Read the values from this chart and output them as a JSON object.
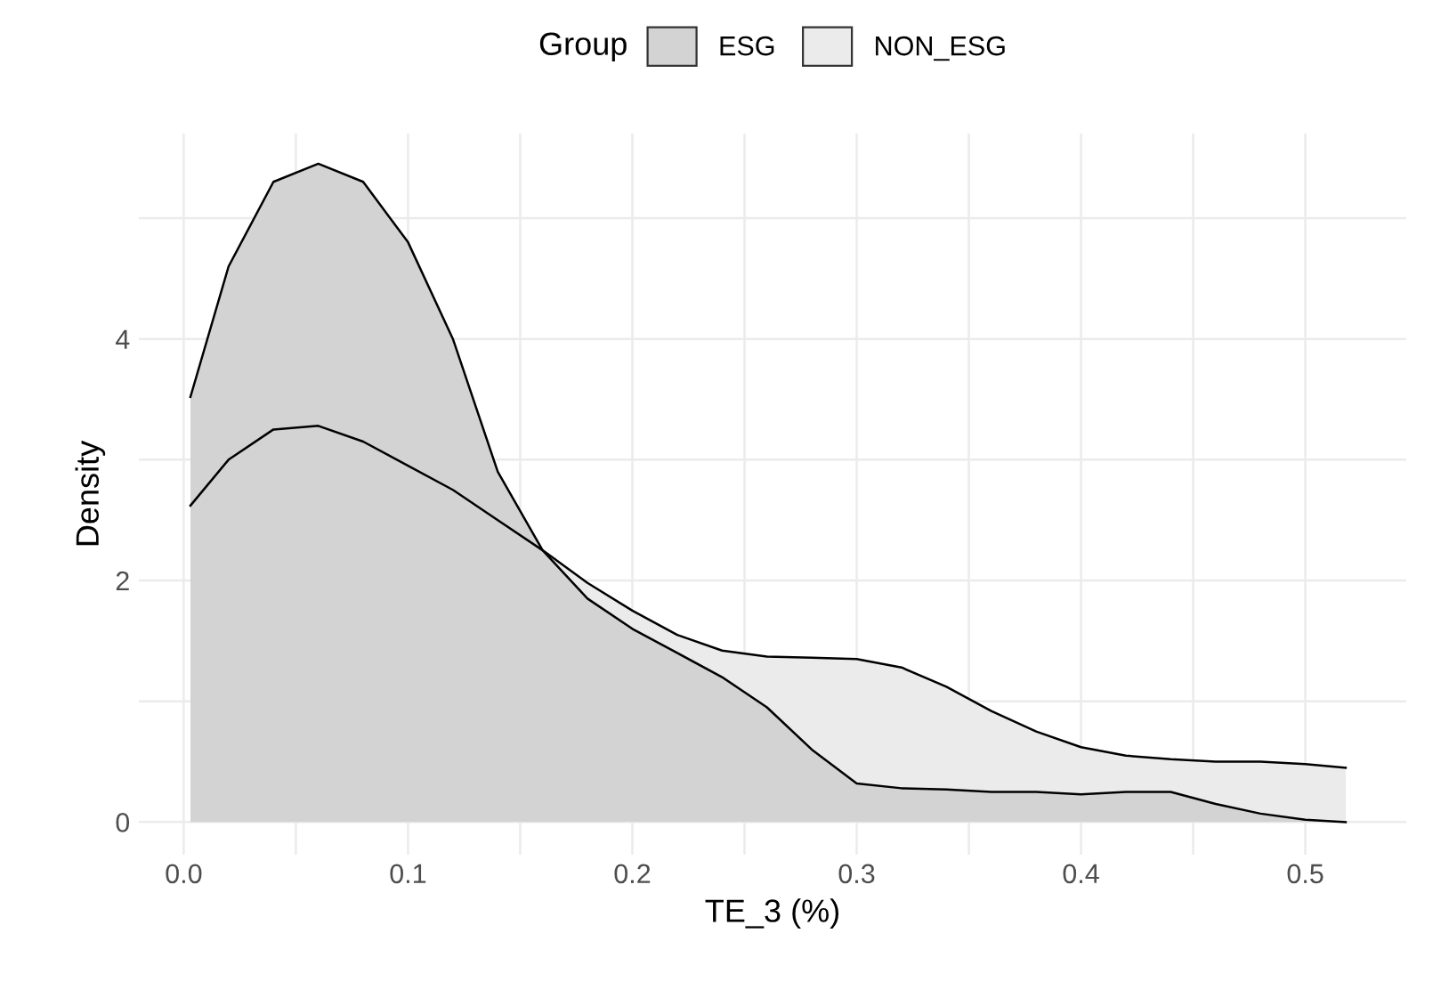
{
  "chart_data": {
    "type": "area",
    "xlabel": "TE_3 (%)",
    "ylabel": "Density",
    "legend_title": "Group",
    "legend": "top",
    "grid": true,
    "xlim": [
      -0.02,
      0.545
    ],
    "ylim": [
      -0.27,
      5.7
    ],
    "xticks": [
      {
        "value": 0,
        "label": "0.0"
      },
      {
        "value": 0.05,
        "label": null
      },
      0.1,
      {
        "value": 0.15,
        "label": null
      },
      0.2,
      {
        "value": 0.25,
        "label": null
      },
      0.3,
      {
        "value": 0.35,
        "label": null
      },
      0.4,
      {
        "value": 0.45,
        "label": null
      },
      0.5
    ],
    "yticks": [
      0,
      {
        "value": 1,
        "label": null
      },
      2,
      {
        "value": 3,
        "label": null
      },
      4,
      {
        "value": 5,
        "label": null
      }
    ],
    "series": [
      {
        "name": "NON_ESG",
        "color": "#ebebeb",
        "x": [
          0.003,
          0.02,
          0.04,
          0.06,
          0.08,
          0.1,
          0.12,
          0.14,
          0.16,
          0.18,
          0.2,
          0.22,
          0.24,
          0.26,
          0.28,
          0.3,
          0.32,
          0.34,
          0.36,
          0.38,
          0.4,
          0.42,
          0.44,
          0.46,
          0.48,
          0.5,
          0.518
        ],
        "values": [
          2.62,
          3.0,
          3.25,
          3.28,
          3.15,
          2.95,
          2.75,
          2.5,
          2.25,
          1.98,
          1.75,
          1.55,
          1.42,
          1.37,
          1.36,
          1.35,
          1.28,
          1.12,
          0.92,
          0.75,
          0.62,
          0.55,
          0.52,
          0.5,
          0.5,
          0.48,
          0.45
        ]
      },
      {
        "name": "ESG",
        "color": "#d3d3d3",
        "x": [
          0.003,
          0.02,
          0.04,
          0.06,
          0.08,
          0.1,
          0.12,
          0.14,
          0.16,
          0.18,
          0.2,
          0.22,
          0.24,
          0.26,
          0.28,
          0.3,
          0.32,
          0.34,
          0.36,
          0.38,
          0.4,
          0.42,
          0.44,
          0.46,
          0.48,
          0.5,
          0.518
        ],
        "values": [
          3.52,
          4.6,
          5.3,
          5.45,
          5.3,
          4.8,
          4.0,
          2.9,
          2.25,
          1.85,
          1.6,
          1.4,
          1.2,
          0.95,
          0.6,
          0.32,
          0.28,
          0.27,
          0.25,
          0.25,
          0.23,
          0.25,
          0.25,
          0.15,
          0.07,
          0.02,
          0.0
        ]
      }
    ]
  }
}
